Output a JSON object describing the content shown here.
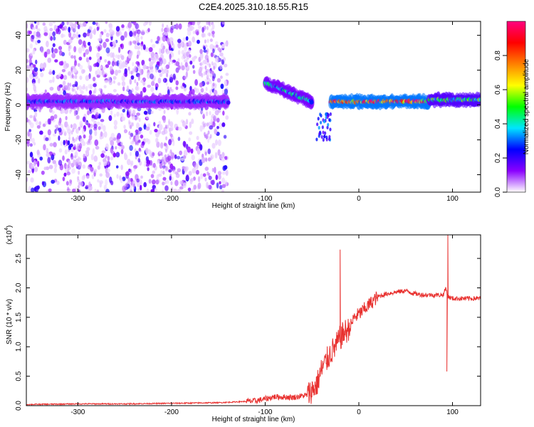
{
  "figure": {
    "title": "C2E4.2025.310.18.55.R15"
  },
  "chart_data": [
    {
      "type": "heatmap",
      "xlabel": "Height of straight line (km)",
      "ylabel": "Frequency (Hz)",
      "xlim": [
        -355,
        130
      ],
      "ylim": [
        -50,
        48
      ],
      "xticks": [
        -300,
        -200,
        -100,
        0,
        100
      ],
      "yticks": [
        -40,
        -20,
        0,
        20,
        40
      ],
      "colorbar": {
        "label": "Normalized spectral amplitude",
        "range": [
          0,
          1
        ],
        "ticks": [
          "0.0",
          "0.2",
          "0.4",
          "0.6",
          "0.8"
        ],
        "colors": [
          "#ffffff",
          "#8a00ff",
          "#0000ff",
          "#00e5ff",
          "#00ff00",
          "#ffff00",
          "#ff8000",
          "#ff0000",
          "#ff0080"
        ]
      },
      "features": [
        {
          "name": "main band",
          "x": [
            -355,
            -140
          ],
          "freq_hz": 2,
          "amplitude": 0.3
        },
        {
          "name": "descending band",
          "x": [
            -100,
            -50
          ],
          "freq_hz": [
            13,
            2
          ],
          "amplitude": 0.4
        },
        {
          "name": "steady line",
          "x": [
            -30,
            75
          ],
          "freq_hz": 2,
          "amplitude": 0.9
        },
        {
          "name": "steady line tail",
          "x": [
            75,
            130
          ],
          "freq_hz": 3,
          "amplitude": 0.5
        }
      ]
    },
    {
      "type": "line",
      "xlabel": "Height of straight line (km)",
      "ylabel": "SNR (10 * v/v)",
      "y_multiplier": "(x10",
      "y_multiplier_exp": "4",
      "xlim": [
        -355,
        130
      ],
      "ylim": [
        0,
        2.9
      ],
      "xticks": [
        -300,
        -200,
        -100,
        0,
        100
      ],
      "yticks": [
        "0.0",
        "0.5",
        "1.0",
        "1.5",
        "2.0",
        "2.5"
      ],
      "series": [
        {
          "name": "SNR",
          "color": "#e8302e",
          "x": [
            -355,
            -300,
            -250,
            -200,
            -150,
            -110,
            -90,
            -70,
            -55,
            -45,
            -40,
            -35,
            -30,
            -25,
            -20,
            -15,
            -10,
            -5,
            0,
            10,
            20,
            30,
            40,
            50,
            60,
            70,
            80,
            90,
            93,
            95,
            100,
            110,
            120,
            130
          ],
          "y": [
            0.02,
            0.03,
            0.03,
            0.04,
            0.05,
            0.08,
            0.15,
            0.14,
            0.18,
            0.35,
            0.6,
            0.75,
            0.9,
            1.0,
            1.15,
            1.25,
            1.3,
            1.5,
            1.55,
            1.7,
            1.85,
            1.9,
            1.93,
            1.95,
            1.9,
            1.88,
            1.88,
            1.88,
            2.0,
            1.85,
            1.82,
            1.82,
            1.82,
            1.82
          ]
        }
      ],
      "annotations": [
        {
          "x": -20,
          "y": 2.65,
          "note": "spike"
        },
        {
          "x": 95,
          "y": 2.9,
          "note": "spike"
        },
        {
          "x": 94,
          "y": 0.58,
          "note": "dip"
        }
      ]
    }
  ]
}
